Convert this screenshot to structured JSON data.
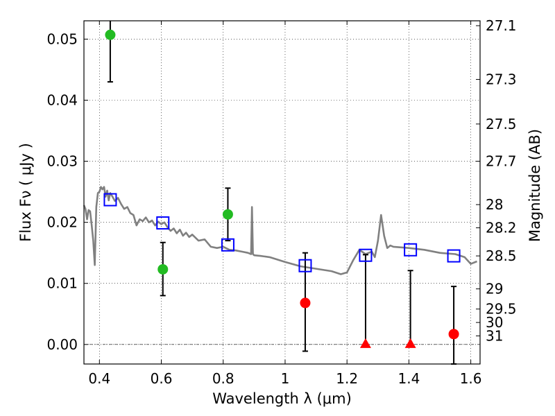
{
  "chart_data": {
    "type": "scatter",
    "title": "",
    "xlabel": "Wavelength  λ (μm)",
    "ylabel": "Flux  Fν  ( μJy )",
    "y2label": "Magnitude (AB)",
    "xlim": [
      0.35,
      1.63
    ],
    "ylim": [
      -0.0032,
      0.053
    ],
    "grid": true,
    "x_ticks": [
      0.4,
      0.6,
      0.8,
      1.0,
      1.2,
      1.4,
      1.6
    ],
    "x_tick_labels": [
      "0.4",
      "0.6",
      "0.8",
      "1",
      "1.2",
      "1.4",
      "1.6"
    ],
    "y_ticks": [
      0.0,
      0.01,
      0.02,
      0.03,
      0.04,
      0.05
    ],
    "y_tick_labels": [
      "0.00",
      "0.01",
      "0.02",
      "0.03",
      "0.04",
      "0.05"
    ],
    "y2_ticks": [
      {
        "label": "27.1",
        "flux": 0.0522
      },
      {
        "label": "27.3",
        "flux": 0.0434
      },
      {
        "label": "27.5",
        "flux": 0.0361
      },
      {
        "label": "27.7",
        "flux": 0.03
      },
      {
        "label": "28",
        "flux": 0.0229
      },
      {
        "label": "28.2",
        "flux": 0.0191
      },
      {
        "label": "28.5",
        "flux": 0.0145
      },
      {
        "label": "29",
        "flux": 0.0091
      },
      {
        "label": "29.5",
        "flux": 0.0058
      },
      {
        "label": "30",
        "flux": 0.0036
      },
      {
        "label": "31",
        "flux": 0.0014
      }
    ],
    "series": [
      {
        "kind": "line",
        "color": "#808080",
        "x": [
          0.35,
          0.355,
          0.36,
          0.365,
          0.37,
          0.375,
          0.38,
          0.385,
          0.39,
          0.395,
          0.4,
          0.405,
          0.41,
          0.415,
          0.42,
          0.425,
          0.43,
          0.435,
          0.44,
          0.45,
          0.46,
          0.47,
          0.48,
          0.49,
          0.5,
          0.51,
          0.52,
          0.53,
          0.54,
          0.55,
          0.56,
          0.57,
          0.58,
          0.59,
          0.6,
          0.61,
          0.62,
          0.63,
          0.64,
          0.65,
          0.66,
          0.67,
          0.68,
          0.69,
          0.7,
          0.72,
          0.74,
          0.76,
          0.78,
          0.8,
          0.82,
          0.84,
          0.86,
          0.88,
          0.89,
          0.893,
          0.896,
          0.9,
          0.92,
          0.95,
          1.0,
          1.05,
          1.1,
          1.15,
          1.18,
          1.2,
          1.22,
          1.24,
          1.26,
          1.28,
          1.29,
          1.3,
          1.31,
          1.32,
          1.33,
          1.34,
          1.35,
          1.4,
          1.45,
          1.5,
          1.55,
          1.58,
          1.6,
          1.62
        ],
        "y": [
          0.0228,
          0.0222,
          0.0205,
          0.022,
          0.0218,
          0.0195,
          0.017,
          0.013,
          0.0225,
          0.0248,
          0.025,
          0.0258,
          0.0254,
          0.0258,
          0.0242,
          0.0252,
          0.0236,
          0.0248,
          0.0244,
          0.0235,
          0.024,
          0.023,
          0.0222,
          0.0225,
          0.0215,
          0.0212,
          0.0195,
          0.0205,
          0.0202,
          0.0208,
          0.02,
          0.0203,
          0.0195,
          0.0201,
          0.0197,
          0.02,
          0.0192,
          0.0186,
          0.019,
          0.0182,
          0.0188,
          0.0178,
          0.0183,
          0.0176,
          0.018,
          0.017,
          0.0172,
          0.016,
          0.0158,
          0.016,
          0.0155,
          0.0154,
          0.0152,
          0.015,
          0.0148,
          0.0225,
          0.0148,
          0.0146,
          0.0145,
          0.0143,
          0.0135,
          0.0128,
          0.0124,
          0.012,
          0.0115,
          0.0118,
          0.0138,
          0.0155,
          0.0148,
          0.0152,
          0.0143,
          0.017,
          0.0212,
          0.0178,
          0.0158,
          0.0162,
          0.016,
          0.0158,
          0.0155,
          0.015,
          0.0148,
          0.0143,
          0.0132,
          0.0136
        ]
      },
      {
        "kind": "model_points",
        "marker": "square",
        "color": "#0000ff",
        "x": [
          0.435,
          0.605,
          0.815,
          1.065,
          1.26,
          1.405,
          1.545
        ],
        "y": [
          0.0237,
          0.0199,
          0.0163,
          0.0129,
          0.0146,
          0.0155,
          0.0145
        ]
      },
      {
        "kind": "observed",
        "marker": "circle",
        "color": "#22bb22",
        "x": [
          0.435,
          0.605,
          0.815
        ],
        "y": [
          0.0507,
          0.0123,
          0.0213
        ],
        "err_low": [
          0.043,
          0.008,
          0.017
        ],
        "err_high": [
          0.055,
          0.0167,
          0.0256
        ]
      },
      {
        "kind": "observed",
        "marker": "circle",
        "color": "#ff0000",
        "x": [
          1.065,
          1.545
        ],
        "y": [
          0.0068,
          0.0017
        ],
        "err_low": [
          -0.0011,
          -0.0032
        ],
        "err_high": [
          0.015,
          0.0095
        ]
      },
      {
        "kind": "upper_limits",
        "marker": "triangle",
        "color": "#ff0000",
        "x": [
          1.26,
          1.405
        ],
        "y": [
          0.0,
          0.0
        ],
        "err_high": [
          0.0147,
          0.0121
        ]
      }
    ]
  }
}
